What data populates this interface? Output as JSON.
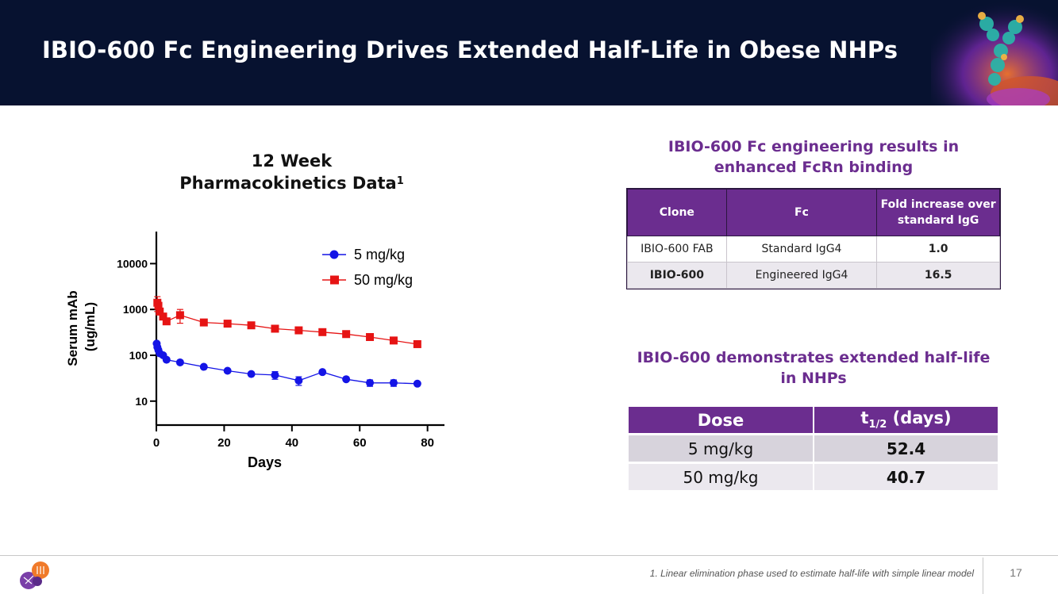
{
  "header": {
    "title": "IBIO-600 Fc Engineering Drives Extended Half-Life in Obese NHPs"
  },
  "chart": {
    "title_line1": "12 Week",
    "title_line2": "Pharmacokinetics Data",
    "title_sup": "1"
  },
  "chart_data": {
    "type": "line",
    "yscale": "log",
    "xlabel": "Days",
    "ylabel_line1": "Serum mAb",
    "ylabel_line2": "(ug/mL)",
    "xlim": [
      0,
      85
    ],
    "ylim": [
      3,
      50000
    ],
    "xticks": [
      0,
      20,
      40,
      60,
      80
    ],
    "yticks": [
      10,
      100,
      1000,
      10000
    ],
    "ytick_labels": [
      "10",
      "100",
      "1000",
      "10000"
    ],
    "legend_position": "top-right",
    "series": [
      {
        "name": "5 mg/kg",
        "color": "#1414e6",
        "marker": "circle",
        "x": [
          0.1,
          0.3,
          0.6,
          1,
          2,
          3,
          7,
          14,
          21,
          28,
          35,
          42,
          49,
          56,
          63,
          70,
          77
        ],
        "y": [
          180,
          150,
          130,
          110,
          100,
          80,
          70,
          56,
          46,
          39,
          37,
          28,
          43,
          30,
          25,
          25,
          24
        ],
        "err": [
          0,
          0,
          0,
          0,
          0,
          0,
          0,
          0,
          0,
          0,
          7,
          6,
          0,
          0,
          4,
          4,
          0
        ]
      },
      {
        "name": "50 mg/kg",
        "color": "#e61414",
        "marker": "square",
        "x": [
          0.3,
          0.6,
          1,
          2,
          3,
          7,
          14,
          21,
          28,
          35,
          42,
          49,
          56,
          63,
          70,
          77
        ],
        "y": [
          1400,
          1200,
          900,
          700,
          550,
          750,
          520,
          490,
          450,
          380,
          350,
          320,
          290,
          250,
          210,
          175
        ],
        "err": [
          500,
          0,
          0,
          0,
          0,
          250,
          0,
          0,
          0,
          0,
          0,
          0,
          0,
          0,
          0,
          25
        ]
      }
    ]
  },
  "fcrn": {
    "heading": "IBIO-600 Fc engineering results in enhanced FcRn binding",
    "columns": [
      "Clone",
      "Fc",
      "Fold increase over standard IgG"
    ],
    "rows": [
      [
        "IBIO-600 FAB",
        "Standard IgG4",
        "1.0"
      ],
      [
        "IBIO-600",
        "Engineered IgG4",
        "16.5"
      ]
    ]
  },
  "halflife": {
    "heading": "IBIO-600 demonstrates extended half-life in NHPs",
    "col_dose": "Dose",
    "col_t_main": "t",
    "col_t_sub": "1/2",
    "col_t_rest": " (days)",
    "rows": [
      [
        "5 mg/kg",
        "52.4"
      ],
      [
        "50 mg/kg",
        "40.7"
      ]
    ]
  },
  "footer": {
    "footnote": "1. Linear elimination phase used to estimate half-life with simple linear model",
    "page_number": "17"
  },
  "colors": {
    "banner_bg": "#071230",
    "accent_purple": "#6b2d8f"
  }
}
